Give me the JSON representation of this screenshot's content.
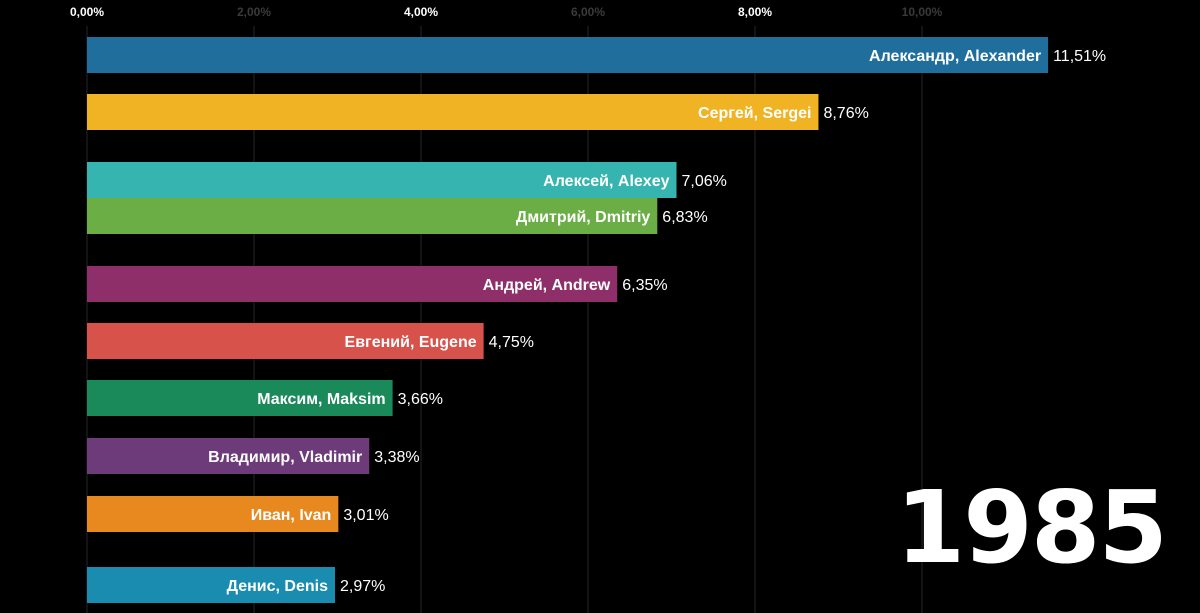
{
  "chart_data": {
    "type": "bar",
    "orientation": "horizontal",
    "title": "",
    "xlabel": "",
    "ylabel": "",
    "xlim": [
      0,
      12
    ],
    "ticks": [
      {
        "value": 0,
        "label": "0,00%",
        "highlight": true
      },
      {
        "value": 2,
        "label": "2,00%",
        "highlight": false
      },
      {
        "value": 4,
        "label": "4,00%",
        "highlight": true
      },
      {
        "value": 6,
        "label": "6,00%",
        "highlight": false
      },
      {
        "value": 8,
        "label": "8,00%",
        "highlight": true
      },
      {
        "value": 10,
        "label": "10,00%",
        "highlight": false
      }
    ],
    "grid": true,
    "categories": [
      "Александр, Alexander",
      "Сергей, Sergei",
      "Алексей, Alexey",
      "Дмитрий, Dmitriy",
      "Андрей, Andrew",
      "Евгений, Eugene",
      "Максим, Maksim",
      "Владимир, Vladimir",
      "Иван, Ivan",
      "Денис, Denis"
    ],
    "values": [
      11.51,
      8.76,
      7.06,
      6.83,
      6.35,
      4.75,
      3.66,
      3.38,
      3.01,
      2.97
    ],
    "value_labels": [
      "11,51%",
      "8,76%",
      "7,06%",
      "6,83%",
      "6,35%",
      "4,75%",
      "3,66%",
      "3,38%",
      "3,01%",
      "2,97%"
    ],
    "colors": [
      "#1f6e9c",
      "#f0b323",
      "#35b4b0",
      "#6aae45",
      "#8f2f6a",
      "#d6524a",
      "#1a8a5a",
      "#6e3b7a",
      "#e8891f",
      "#1a8cb0"
    ],
    "year": "1985"
  }
}
